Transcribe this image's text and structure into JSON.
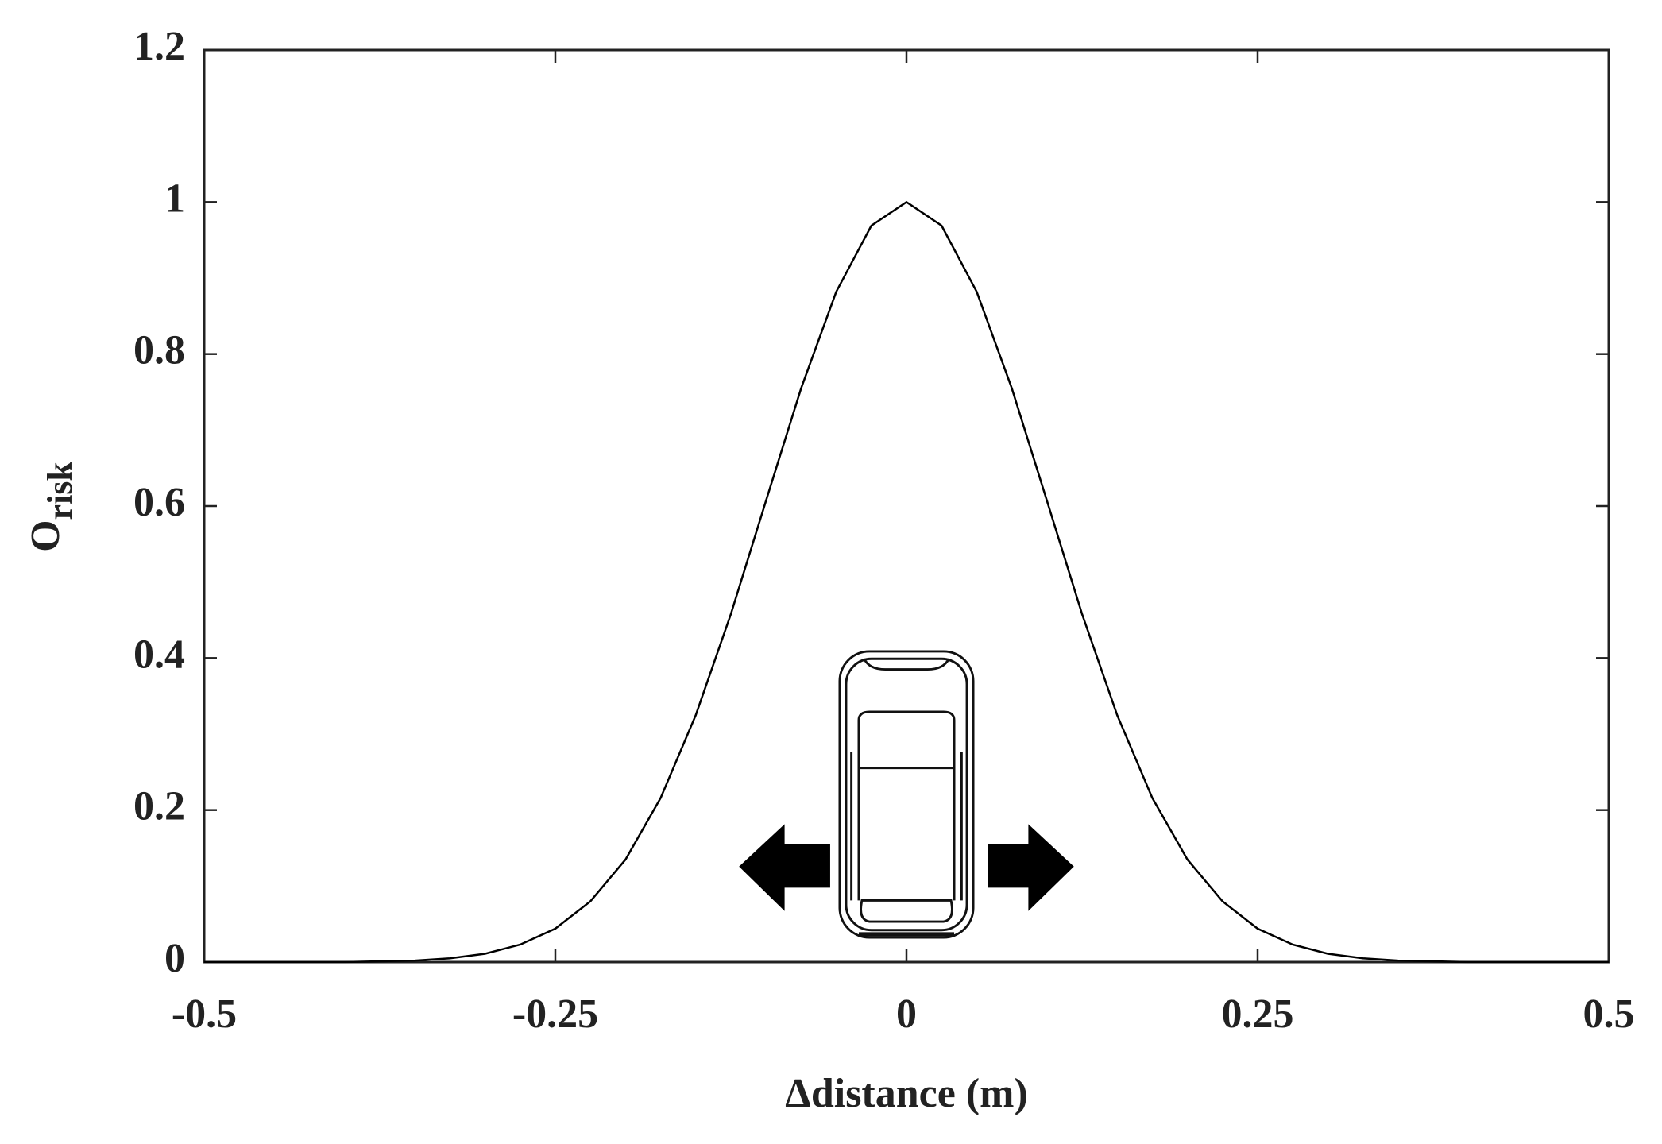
{
  "chart_data": {
    "type": "line",
    "x_label": "Δdistance (m)",
    "y_label": {
      "main": "O",
      "sub": "risk"
    },
    "x": [
      -0.5,
      -0.475,
      -0.45,
      -0.425,
      -0.4,
      -0.375,
      -0.35,
      -0.325,
      -0.3,
      -0.275,
      -0.25,
      -0.225,
      -0.2,
      -0.175,
      -0.15,
      -0.125,
      -0.1,
      -0.075,
      -0.05,
      -0.025,
      0,
      0.025,
      0.05,
      0.075,
      0.1,
      0.125,
      0.15,
      0.175,
      0.2,
      0.225,
      0.25,
      0.275,
      0.3,
      0.325,
      0.35,
      0.375,
      0.4,
      0.425,
      0.45,
      0.475,
      0.5
    ],
    "series": [
      {
        "color": "#000000",
        "values": [
          0,
          0,
          0,
          0,
          0,
          0.001,
          0.002,
          0.005,
          0.011,
          0.023,
          0.044,
          0.08,
          0.135,
          0.216,
          0.325,
          0.458,
          0.607,
          0.755,
          0.882,
          0.969,
          1,
          0.969,
          0.882,
          0.755,
          0.607,
          0.458,
          0.325,
          0.216,
          0.135,
          0.08,
          0.044,
          0.023,
          0.011,
          0.005,
          0.002,
          0.001,
          0,
          0,
          0,
          0,
          0
        ]
      }
    ],
    "xlim": [
      -0.5,
      0.5
    ],
    "xticks": [
      -0.5,
      -0.25,
      0,
      0.25,
      0.5
    ],
    "ylim": [
      0,
      1.2
    ],
    "yticks": [
      0,
      0.2,
      0.4,
      0.6,
      0.8,
      1,
      1.2
    ],
    "grid": false
  }
}
